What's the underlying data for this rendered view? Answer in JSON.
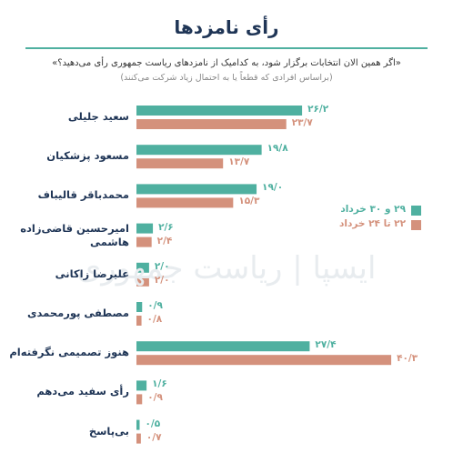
{
  "chart_data": {
    "type": "bar",
    "title": "رأی نامزدها",
    "subtitle": "«اگر همین الان انتخابات برگزار شود، به کدامیک از نامزدهای ریاست جمهوری رأی می‌دهید؟»",
    "note": "(براساس افرادی که قطعاً یا به احتمال زیاد شرکت می‌کنند)",
    "watermark": "ایسپا | ریاست جمهوری",
    "orientation": "horizontal",
    "categories": [
      "سعید جلیلی",
      "مسعود پزشکیان",
      "محمدباقر قالیباف",
      "امیرحسین قاضی‌زاده\nهاشمی",
      "علیرضا زاکانی",
      "مصطفی پورمحمدی",
      "هنوز تصمیمی نگرفته‌ام",
      "رأی سفید می‌دهم",
      "بی‌پاسخ"
    ],
    "series": [
      {
        "name": "۲۹ و ۳۰ خرداد",
        "color": "#4fb0a0",
        "values": [
          26.2,
          19.8,
          19.0,
          2.6,
          2.0,
          0.9,
          27.4,
          1.6,
          0.5
        ],
        "value_labels": [
          "۲۶/۲",
          "۱۹/۸",
          "۱۹/۰",
          "۲/۶",
          "۲/۰",
          "۰/۹",
          "۲۷/۴",
          "۱/۶",
          "۰/۵"
        ]
      },
      {
        "name": "۲۲ تا ۲۴ خرداد",
        "color": "#d4917c",
        "values": [
          23.7,
          13.7,
          15.3,
          2.4,
          2.0,
          0.8,
          40.3,
          0.9,
          0.7
        ],
        "value_labels": [
          "۲۳/۷",
          "۱۳/۷",
          "۱۵/۳",
          "۲/۴",
          "۲/۰",
          "۰/۸",
          "۴۰/۳",
          "۰/۹",
          "۰/۷"
        ]
      }
    ],
    "legend": "right"
  }
}
